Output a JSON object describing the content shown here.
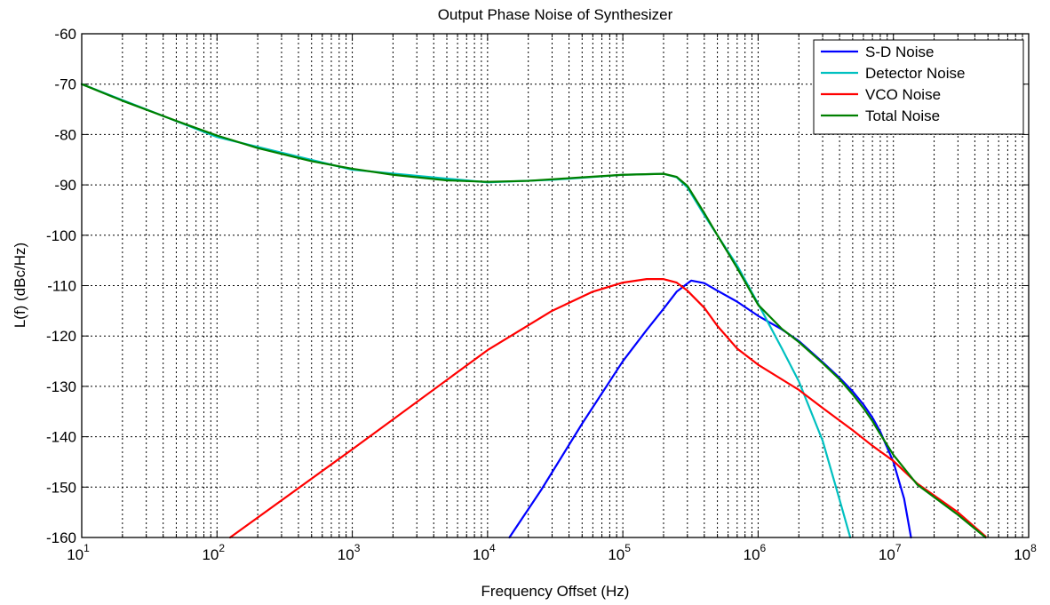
{
  "chart_data": {
    "type": "line",
    "title": "Output Phase Noise of Synthesizer",
    "xlabel": "Frequency Offset (Hz)",
    "ylabel": "L(f) (dBc/Hz)",
    "x_scale": "log",
    "xlim": [
      10,
      100000000
    ],
    "ylim": [
      -160,
      -60
    ],
    "x_ticks": [
      {
        "base": "10",
        "exp": "1"
      },
      {
        "base": "10",
        "exp": "2"
      },
      {
        "base": "10",
        "exp": "3"
      },
      {
        "base": "10",
        "exp": "4"
      },
      {
        "base": "10",
        "exp": "5"
      },
      {
        "base": "10",
        "exp": "6"
      },
      {
        "base": "10",
        "exp": "7"
      },
      {
        "base": "10",
        "exp": "8"
      }
    ],
    "y_ticks": [
      -60,
      -70,
      -80,
      -90,
      -100,
      -110,
      -120,
      -130,
      -140,
      -150,
      -160
    ],
    "grid": true,
    "legend_position": "top-right",
    "series": [
      {
        "name": "S-D Noise",
        "color": "#0000ff",
        "x": [
          14500,
          25000,
          50000,
          100000,
          150000,
          200000,
          250000,
          320000,
          400000,
          500000,
          700000,
          1000000,
          1500000,
          2000000,
          3000000,
          4000000,
          5000000,
          6000000,
          7000000,
          8000000,
          10000000,
          12000000,
          13500000
        ],
        "y": [
          -160,
          -150.5,
          -137.4,
          -125,
          -118.8,
          -114.6,
          -111.2,
          -109,
          -109.5,
          -111,
          -113.2,
          -116,
          -118.7,
          -121,
          -125.2,
          -128.3,
          -131,
          -133.6,
          -136.2,
          -139,
          -145,
          -152.3,
          -160
        ]
      },
      {
        "name": "Detector Noise",
        "color": "#00c0c0",
        "x": [
          10,
          100,
          1000,
          10000,
          30000,
          100000,
          200000,
          250000,
          300000,
          400000,
          500000,
          700000,
          1000000,
          1500000,
          2000000,
          3000000,
          4000000,
          4800000
        ],
        "y": [
          -70,
          -80.5,
          -87,
          -89.5,
          -89,
          -88,
          -87.8,
          -88.5,
          -90.5,
          -96,
          -100,
          -106,
          -113.6,
          -122.5,
          -129,
          -140.8,
          -152.5,
          -160
        ]
      },
      {
        "name": "VCO Noise",
        "color": "#ff0000",
        "x": [
          125,
          1000,
          10000,
          30000,
          60000,
          100000,
          150000,
          200000,
          250000,
          300000,
          400000,
          500000,
          700000,
          1000000,
          2000000,
          3000000,
          5000000,
          7000000,
          10000000,
          15000000,
          30000000,
          48000000
        ],
        "y": [
          -160,
          -142.5,
          -122.8,
          -115,
          -111.2,
          -109.4,
          -108.7,
          -108.7,
          -109.4,
          -111,
          -114.4,
          -118,
          -122.5,
          -125.7,
          -130.7,
          -134.3,
          -138.7,
          -141.8,
          -144.8,
          -149.3,
          -155,
          -159.8
        ]
      },
      {
        "name": "Total Noise",
        "color": "#008000",
        "x": [
          10,
          20,
          50,
          100,
          200,
          500,
          1000,
          2000,
          5000,
          10000,
          20000,
          50000,
          100000,
          200000,
          250000,
          300000,
          400000,
          500000,
          700000,
          1000000,
          1500000,
          2000000,
          3000000,
          4000000,
          5000000,
          6000000,
          7000000,
          8000000,
          10000000,
          15000000,
          20000000,
          30000000,
          48000000
        ],
        "y": [
          -70,
          -73.3,
          -77.3,
          -80.2,
          -82.7,
          -85.3,
          -86.8,
          -88,
          -89.1,
          -89.4,
          -89.2,
          -88.5,
          -88,
          -87.8,
          -88.4,
          -90.2,
          -95.6,
          -100,
          -106.5,
          -113.8,
          -118.6,
          -121.2,
          -125.4,
          -128.6,
          -131.6,
          -134.3,
          -136.9,
          -139.5,
          -143.6,
          -149.5,
          -152,
          -155.5,
          -160
        ]
      }
    ]
  }
}
